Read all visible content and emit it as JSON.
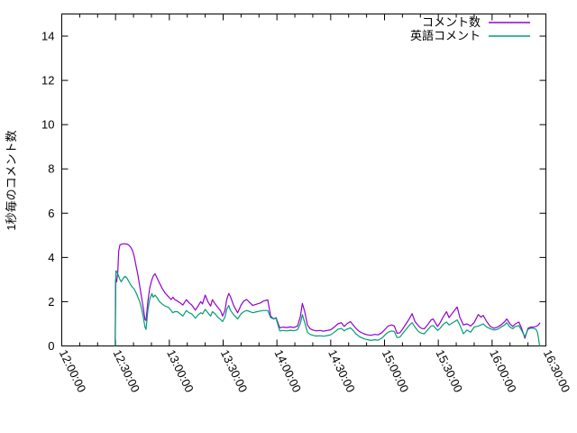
{
  "chart_data": {
    "type": "line",
    "title": "",
    "xlabel": "",
    "ylabel": "1秒毎のコメント数",
    "x_unit_note": "time of day, minutes measured after 12:00:00",
    "ylim": [
      0,
      15
    ],
    "ytick_values": [
      0,
      2,
      4,
      6,
      8,
      10,
      12,
      14
    ],
    "xlim_minutes": [
      0,
      270
    ],
    "xtick_minutes": [
      0,
      30,
      60,
      90,
      120,
      150,
      180,
      210,
      240,
      270
    ],
    "xtick_labels": [
      "12:00:00",
      "12:30:00",
      "13:00:00",
      "13:30:00",
      "14:00:00",
      "14:30:00",
      "15:00:00",
      "15:30:00",
      "16:00:00",
      "16:30:00"
    ],
    "minor_xtick_interval_minutes": 10,
    "grid": false,
    "legend_position": "top-right-inside",
    "background_color": "#ffffff",
    "border_color": "#000000",
    "series": [
      {
        "name": "コメント数",
        "color": "#9400d3",
        "points": [
          [
            29.8,
            0
          ],
          [
            30.0,
            3.0
          ],
          [
            30.6,
            2.9
          ],
          [
            31.2,
            3.3
          ],
          [
            31.8,
            4.3
          ],
          [
            32.5,
            4.57
          ],
          [
            33.5,
            4.6
          ],
          [
            35.0,
            4.62
          ],
          [
            36.5,
            4.6
          ],
          [
            37.5,
            4.55
          ],
          [
            38.5,
            4.45
          ],
          [
            39.5,
            4.3
          ],
          [
            40.5,
            4.0
          ],
          [
            41.5,
            3.6
          ],
          [
            42.5,
            3.2
          ],
          [
            43.5,
            2.7
          ],
          [
            44.5,
            2.2
          ],
          [
            45.5,
            1.7
          ],
          [
            46.4,
            1.2
          ],
          [
            47.0,
            1.15
          ],
          [
            48.0,
            2.0
          ],
          [
            49.0,
            2.6
          ],
          [
            50.3,
            3.0
          ],
          [
            51.0,
            3.15
          ],
          [
            52.0,
            3.26
          ],
          [
            53.0,
            3.1
          ],
          [
            54.5,
            2.84
          ],
          [
            56.0,
            2.6
          ],
          [
            57.5,
            2.4
          ],
          [
            59.5,
            2.23
          ],
          [
            61.0,
            2.1
          ],
          [
            62.0,
            2.2
          ],
          [
            63.0,
            2.1
          ],
          [
            64.5,
            2.03
          ],
          [
            66.0,
            1.95
          ],
          [
            67.5,
            1.85
          ],
          [
            69.5,
            2.09
          ],
          [
            71.0,
            1.95
          ],
          [
            72.5,
            1.85
          ],
          [
            74.5,
            1.62
          ],
          [
            76.0,
            1.8
          ],
          [
            77.5,
            2.0
          ],
          [
            78.5,
            1.9
          ],
          [
            80.0,
            2.3
          ],
          [
            81.5,
            2.0
          ],
          [
            83.0,
            1.8
          ],
          [
            84.0,
            2.09
          ],
          [
            85.5,
            1.9
          ],
          [
            87.0,
            1.75
          ],
          [
            88.5,
            1.6
          ],
          [
            89.7,
            1.35
          ],
          [
            91.0,
            1.6
          ],
          [
            92.0,
            2.1
          ],
          [
            93.1,
            2.37
          ],
          [
            94.0,
            2.24
          ],
          [
            96.0,
            1.8
          ],
          [
            98.1,
            1.5
          ],
          [
            100.0,
            1.85
          ],
          [
            101.5,
            2.03
          ],
          [
            103.1,
            2.1
          ],
          [
            105.0,
            1.95
          ],
          [
            106.5,
            1.83
          ],
          [
            109.0,
            1.9
          ],
          [
            111.0,
            1.95
          ],
          [
            112.4,
            2.03
          ],
          [
            114.9,
            2.08
          ],
          [
            116.5,
            1.35
          ],
          [
            118.2,
            1.22
          ],
          [
            119.5,
            1.28
          ],
          [
            121.6,
            0.82
          ],
          [
            123.5,
            0.85
          ],
          [
            125.5,
            0.83
          ],
          [
            127.5,
            0.86
          ],
          [
            129.5,
            0.83
          ],
          [
            131.5,
            0.9
          ],
          [
            133.0,
            1.3
          ],
          [
            134.2,
            1.92
          ],
          [
            135.5,
            1.55
          ],
          [
            137.0,
            0.95
          ],
          [
            138.5,
            0.78
          ],
          [
            140.0,
            0.72
          ],
          [
            142.0,
            0.68
          ],
          [
            144.0,
            0.7
          ],
          [
            146.0,
            0.67
          ],
          [
            148.0,
            0.7
          ],
          [
            150.0,
            0.73
          ],
          [
            152.0,
            0.85
          ],
          [
            154.0,
            1.0
          ],
          [
            155.9,
            1.05
          ],
          [
            157.5,
            0.88
          ],
          [
            159.0,
            1.0
          ],
          [
            161.0,
            1.1
          ],
          [
            162.5,
            0.95
          ],
          [
            164.0,
            0.8
          ],
          [
            166.0,
            0.65
          ],
          [
            168.5,
            0.55
          ],
          [
            170.5,
            0.5
          ],
          [
            172.5,
            0.48
          ],
          [
            174.5,
            0.52
          ],
          [
            176.5,
            0.5
          ],
          [
            178.5,
            0.6
          ],
          [
            180.3,
            0.75
          ],
          [
            182.0,
            0.9
          ],
          [
            184.0,
            0.95
          ],
          [
            185.5,
            0.9
          ],
          [
            187.0,
            0.57
          ],
          [
            188.6,
            0.6
          ],
          [
            190.0,
            0.75
          ],
          [
            192.0,
            1.0
          ],
          [
            194.0,
            1.25
          ],
          [
            195.4,
            1.46
          ],
          [
            197.0,
            1.1
          ],
          [
            199.0,
            0.9
          ],
          [
            200.5,
            0.8
          ],
          [
            202.1,
            0.77
          ],
          [
            204.0,
            0.95
          ],
          [
            206.0,
            1.18
          ],
          [
            207.1,
            1.22
          ],
          [
            209.6,
            0.88
          ],
          [
            211.0,
            1.05
          ],
          [
            213.0,
            1.35
          ],
          [
            214.6,
            1.55
          ],
          [
            216.0,
            1.28
          ],
          [
            218.0,
            1.5
          ],
          [
            220.5,
            1.76
          ],
          [
            222.0,
            1.3
          ],
          [
            224.0,
            0.95
          ],
          [
            226.0,
            1.0
          ],
          [
            228.0,
            0.9
          ],
          [
            230.0,
            1.05
          ],
          [
            232.3,
            1.42
          ],
          [
            233.8,
            1.3
          ],
          [
            235.0,
            1.38
          ],
          [
            237.0,
            1.1
          ],
          [
            239.0,
            0.88
          ],
          [
            241.0,
            0.8
          ],
          [
            243.0,
            0.85
          ],
          [
            245.0,
            0.95
          ],
          [
            247.0,
            1.1
          ],
          [
            248.2,
            1.22
          ],
          [
            250.0,
            1.0
          ],
          [
            251.5,
            0.88
          ],
          [
            253.0,
            1.0
          ],
          [
            254.9,
            1.08
          ],
          [
            256.5,
            0.8
          ],
          [
            258.3,
            0.35
          ],
          [
            260.0,
            0.8
          ],
          [
            261.5,
            0.85
          ],
          [
            263.0,
            0.85
          ],
          [
            264.5,
            0.88
          ],
          [
            265.5,
            0.92
          ],
          [
            266.8,
            1.05
          ]
        ]
      },
      {
        "name": "英語コメント",
        "color": "#009e73",
        "points": [
          [
            29.8,
            0
          ],
          [
            30.2,
            3.4
          ],
          [
            31.0,
            3.3
          ],
          [
            31.8,
            3.15
          ],
          [
            32.5,
            3.0
          ],
          [
            33.2,
            2.9
          ],
          [
            34.2,
            3.05
          ],
          [
            35.3,
            3.15
          ],
          [
            36.5,
            3.05
          ],
          [
            37.5,
            2.9
          ],
          [
            38.5,
            2.75
          ],
          [
            39.5,
            2.65
          ],
          [
            40.5,
            2.55
          ],
          [
            41.5,
            2.4
          ],
          [
            42.5,
            2.2
          ],
          [
            43.5,
            2.0
          ],
          [
            44.5,
            1.7
          ],
          [
            45.5,
            1.3
          ],
          [
            46.4,
            0.85
          ],
          [
            47.0,
            0.75
          ],
          [
            48.0,
            1.6
          ],
          [
            49.0,
            2.1
          ],
          [
            50.3,
            2.37
          ],
          [
            51.0,
            2.2
          ],
          [
            52.0,
            2.3
          ],
          [
            53.0,
            2.2
          ],
          [
            54.5,
            2.0
          ],
          [
            56.0,
            1.9
          ],
          [
            57.5,
            1.8
          ],
          [
            59.5,
            1.75
          ],
          [
            61.0,
            1.6
          ],
          [
            62.0,
            1.5
          ],
          [
            63.0,
            1.55
          ],
          [
            64.5,
            1.55
          ],
          [
            66.0,
            1.45
          ],
          [
            67.5,
            1.35
          ],
          [
            69.5,
            1.6
          ],
          [
            71.0,
            1.5
          ],
          [
            72.5,
            1.45
          ],
          [
            74.5,
            1.25
          ],
          [
            76.0,
            1.4
          ],
          [
            77.5,
            1.5
          ],
          [
            78.5,
            1.45
          ],
          [
            80.0,
            1.65
          ],
          [
            81.5,
            1.5
          ],
          [
            83.0,
            1.35
          ],
          [
            84.0,
            1.55
          ],
          [
            85.5,
            1.45
          ],
          [
            87.0,
            1.3
          ],
          [
            88.5,
            1.2
          ],
          [
            89.7,
            1.1
          ],
          [
            91.0,
            1.3
          ],
          [
            92.0,
            1.65
          ],
          [
            93.1,
            1.83
          ],
          [
            94.0,
            1.62
          ],
          [
            96.0,
            1.4
          ],
          [
            98.1,
            1.22
          ],
          [
            100.0,
            1.45
          ],
          [
            101.5,
            1.55
          ],
          [
            103.1,
            1.6
          ],
          [
            105.0,
            1.55
          ],
          [
            106.5,
            1.5
          ],
          [
            109.0,
            1.55
          ],
          [
            111.0,
            1.58
          ],
          [
            112.4,
            1.6
          ],
          [
            114.9,
            1.6
          ],
          [
            116.5,
            1.28
          ],
          [
            118.2,
            1.22
          ],
          [
            119.5,
            1.25
          ],
          [
            121.6,
            0.68
          ],
          [
            123.5,
            0.7
          ],
          [
            125.5,
            0.68
          ],
          [
            127.5,
            0.71
          ],
          [
            129.5,
            0.69
          ],
          [
            131.5,
            0.73
          ],
          [
            133.0,
            1.0
          ],
          [
            134.2,
            1.42
          ],
          [
            135.5,
            1.05
          ],
          [
            137.0,
            0.62
          ],
          [
            138.5,
            0.52
          ],
          [
            140.0,
            0.48
          ],
          [
            142.0,
            0.45
          ],
          [
            144.0,
            0.46
          ],
          [
            146.0,
            0.44
          ],
          [
            148.0,
            0.47
          ],
          [
            150.0,
            0.5
          ],
          [
            152.0,
            0.62
          ],
          [
            154.0,
            0.75
          ],
          [
            155.9,
            0.8
          ],
          [
            157.5,
            0.68
          ],
          [
            159.0,
            0.76
          ],
          [
            161.0,
            0.82
          ],
          [
            162.5,
            0.7
          ],
          [
            164.0,
            0.55
          ],
          [
            166.0,
            0.42
          ],
          [
            168.5,
            0.32
          ],
          [
            170.5,
            0.28
          ],
          [
            172.5,
            0.25
          ],
          [
            174.5,
            0.28
          ],
          [
            176.5,
            0.26
          ],
          [
            178.5,
            0.35
          ],
          [
            180.3,
            0.5
          ],
          [
            182.0,
            0.62
          ],
          [
            184.0,
            0.68
          ],
          [
            185.5,
            0.65
          ],
          [
            187.0,
            0.38
          ],
          [
            188.6,
            0.4
          ],
          [
            190.0,
            0.55
          ],
          [
            192.0,
            0.75
          ],
          [
            194.0,
            0.95
          ],
          [
            195.4,
            1.05
          ],
          [
            197.0,
            0.85
          ],
          [
            199.0,
            0.65
          ],
          [
            200.5,
            0.58
          ],
          [
            202.1,
            0.55
          ],
          [
            204.0,
            0.72
          ],
          [
            206.0,
            0.9
          ],
          [
            207.1,
            0.92
          ],
          [
            209.6,
            0.7
          ],
          [
            211.0,
            0.8
          ],
          [
            213.0,
            1.0
          ],
          [
            214.6,
            1.08
          ],
          [
            216.0,
            0.95
          ],
          [
            218.0,
            1.05
          ],
          [
            220.5,
            1.18
          ],
          [
            222.0,
            0.95
          ],
          [
            224.0,
            0.55
          ],
          [
            226.0,
            0.72
          ],
          [
            228.0,
            0.62
          ],
          [
            230.0,
            0.85
          ],
          [
            232.3,
            0.9
          ],
          [
            233.8,
            0.95
          ],
          [
            235.0,
            1.0
          ],
          [
            237.0,
            0.85
          ],
          [
            239.0,
            0.78
          ],
          [
            241.0,
            0.72
          ],
          [
            243.0,
            0.75
          ],
          [
            245.0,
            0.85
          ],
          [
            247.0,
            0.95
          ],
          [
            248.2,
            1.05
          ],
          [
            250.0,
            0.85
          ],
          [
            251.5,
            0.78
          ],
          [
            253.0,
            0.88
          ],
          [
            254.9,
            0.92
          ],
          [
            256.5,
            0.7
          ],
          [
            258.3,
            0.42
          ],
          [
            260.0,
            0.75
          ],
          [
            261.5,
            0.8
          ],
          [
            263.0,
            0.8
          ],
          [
            264.5,
            0.75
          ],
          [
            265.3,
            0.6
          ],
          [
            266.0,
            0.3
          ],
          [
            266.5,
            0
          ]
        ]
      }
    ]
  }
}
